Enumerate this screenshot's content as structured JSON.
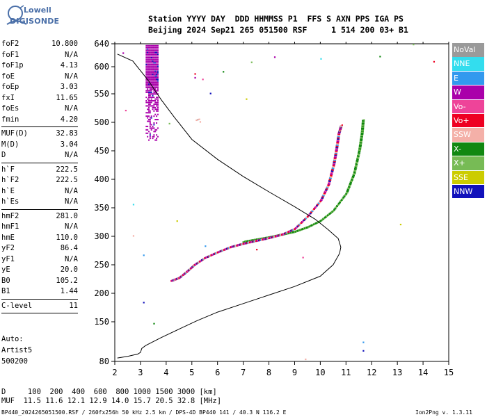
{
  "brand": {
    "line1": "Lowell",
    "line2": "DIGISONDE"
  },
  "header": {
    "line1": "Station YYYY DAY  DDD HHMMSS P1  FFS S AXN PPS IGA PS",
    "line2": "Beijing 2024 Sep21 265 051500 RSF     1 514 200 03+ B1"
  },
  "params": [
    {
      "label": "foF2",
      "value": "10.800"
    },
    {
      "label": "foF1",
      "value": "N/A"
    },
    {
      "label": "foF1p",
      "value": "4.13"
    },
    {
      "label": "foE",
      "value": "N/A"
    },
    {
      "label": "foEp",
      "value": "3.03"
    },
    {
      "label": "fxI",
      "value": "11.65"
    },
    {
      "label": "foEs",
      "value": "N/A"
    },
    {
      "label": "fmin",
      "value": "4.20"
    },
    {
      "sep": true
    },
    {
      "label": "MUF(D)",
      "value": "32.83"
    },
    {
      "label": "M(D)",
      "value": "3.04"
    },
    {
      "label": "D",
      "value": "N/A"
    },
    {
      "sep": true
    },
    {
      "label": "h`F",
      "value": "222.5"
    },
    {
      "label": "h`F2",
      "value": "222.5"
    },
    {
      "label": "h`E",
      "value": "N/A"
    },
    {
      "label": "h`Es",
      "value": "N/A"
    },
    {
      "sep": true
    },
    {
      "label": "hmF2",
      "value": "281.0"
    },
    {
      "label": "hmF1",
      "value": "N/A"
    },
    {
      "label": "hmE",
      "value": "110.0"
    },
    {
      "label": "yF2",
      "value": "86.4"
    },
    {
      "label": "yF1",
      "value": "N/A"
    },
    {
      "label": "yE",
      "value": "20.0"
    },
    {
      "label": "B0",
      "value": "105.2"
    },
    {
      "label": "B1",
      "value": "1.44"
    },
    {
      "sep": true
    },
    {
      "label": "C-level",
      "value": "11"
    },
    {
      "sep": true
    }
  ],
  "autoscaling": {
    "label": "Auto:",
    "program": "Artist5",
    "version": "500200"
  },
  "legend": [
    {
      "label": "NoVal",
      "color": "#9a9a9a"
    },
    {
      "label": "NNE",
      "color": "#33ddee"
    },
    {
      "label": "E",
      "color": "#3399ee"
    },
    {
      "label": "W",
      "color": "#aa00aa"
    },
    {
      "label": "Vo-",
      "color": "#ee4499"
    },
    {
      "label": "Vo+",
      "color": "#ee0022"
    },
    {
      "label": "SSW",
      "color": "#f4b0a8"
    },
    {
      "label": "X-",
      "color": "#118811"
    },
    {
      "label": "X+",
      "color": "#77bb55"
    },
    {
      "label": "SSE",
      "color": "#cccc00"
    },
    {
      "label": "NNW",
      "color": "#1111bb"
    }
  ],
  "muf_table": {
    "d_row": "D     100  200  400  600  800 1000 1500 3000 [km]",
    "muf_row": "MUF  11.5 11.6 12.1 12.9 14.0 15.7 20.5 32.8 [MHz]"
  },
  "footer": {
    "left": "BP440_2024265051500.RSF / 260fx256h 50 kHz 2.5 km / DPS-4D BP440 141 / 40.3 N 116.2 E",
    "right": "Ion2Png v. 1.3.11"
  },
  "chart_data": {
    "type": "scatter",
    "xlim": [
      2,
      15
    ],
    "ylim": [
      80,
      640
    ],
    "xticks": [
      2,
      3,
      4,
      5,
      6,
      7,
      8,
      9,
      10,
      11,
      12,
      13,
      14,
      15
    ],
    "yticks": [
      80,
      150,
      200,
      250,
      300,
      350,
      400,
      450,
      500,
      550,
      600,
      640
    ],
    "profile_curve": [
      [
        2.1,
        86
      ],
      [
        2.5,
        89
      ],
      [
        2.9,
        93
      ],
      [
        3.0,
        96
      ],
      [
        3.05,
        103
      ],
      [
        3.2,
        108
      ],
      [
        3.8,
        122
      ],
      [
        4.5,
        137
      ],
      [
        5.2,
        152
      ],
      [
        6.0,
        167
      ],
      [
        7.0,
        182
      ],
      [
        8.0,
        197
      ],
      [
        9.0,
        212
      ],
      [
        10.0,
        230
      ],
      [
        10.5,
        250
      ],
      [
        10.75,
        270
      ],
      [
        10.8,
        281
      ],
      [
        10.7,
        296
      ],
      [
        10.3,
        312
      ],
      [
        9.8,
        330
      ],
      [
        9.0,
        352
      ],
      [
        8.0,
        378
      ],
      [
        7.0,
        405
      ],
      [
        6.0,
        435
      ],
      [
        5.0,
        470
      ],
      [
        4.3,
        510
      ],
      [
        3.8,
        540
      ],
      [
        3.3,
        575
      ],
      [
        2.7,
        610
      ],
      [
        2.1,
        622
      ]
    ],
    "o_trace": [
      [
        4.2,
        222
      ],
      [
        4.5,
        227
      ],
      [
        4.8,
        238
      ],
      [
        5.1,
        250
      ],
      [
        5.5,
        262
      ],
      [
        6.0,
        272
      ],
      [
        6.5,
        281
      ],
      [
        7.0,
        287
      ],
      [
        7.5,
        292
      ],
      [
        8.0,
        297
      ],
      [
        8.5,
        303
      ],
      [
        9.0,
        313
      ],
      [
        9.5,
        335
      ],
      [
        10.0,
        362
      ],
      [
        10.3,
        390
      ],
      [
        10.5,
        425
      ],
      [
        10.6,
        450
      ],
      [
        10.7,
        480
      ],
      [
        10.8,
        495
      ]
    ],
    "x_trace": [
      [
        7.0,
        290
      ],
      [
        7.5,
        294
      ],
      [
        8.0,
        298
      ],
      [
        8.5,
        303
      ],
      [
        9.0,
        308
      ],
      [
        9.5,
        316
      ],
      [
        10.0,
        327
      ],
      [
        10.5,
        345
      ],
      [
        11.0,
        375
      ],
      [
        11.3,
        410
      ],
      [
        11.5,
        450
      ],
      [
        11.6,
        480
      ],
      [
        11.65,
        505
      ]
    ],
    "w_column": {
      "x": [
        3.2,
        3.65
      ],
      "y": [
        470,
        640
      ]
    },
    "es_traces": [
      {
        "x": [
          5.15,
          5.3
        ],
        "y": 505
      }
    ],
    "scattered_echoes": [
      [
        2.3,
        625
      ],
      [
        2.4,
        522
      ],
      [
        2.7,
        302
      ],
      [
        2.7,
        357
      ],
      [
        3.1,
        268
      ],
      [
        3.1,
        185
      ],
      [
        3.5,
        148
      ],
      [
        4.1,
        499
      ],
      [
        4.4,
        328
      ],
      [
        5.1,
        588
      ],
      [
        5.1,
        581
      ],
      [
        5.4,
        578
      ],
      [
        5.3,
        502
      ],
      [
        5.2,
        506
      ],
      [
        5.5,
        284
      ],
      [
        5.7,
        552
      ],
      [
        6.2,
        592
      ],
      [
        7.3,
        609
      ],
      [
        7.1,
        542
      ],
      [
        7.5,
        278
      ],
      [
        8.2,
        618
      ],
      [
        9.3,
        264
      ],
      [
        9.4,
        85
      ],
      [
        10.0,
        615
      ],
      [
        11.65,
        115
      ],
      [
        11.65,
        100
      ],
      [
        12.3,
        619
      ],
      [
        13.6,
        640
      ],
      [
        13.1,
        322
      ],
      [
        14.4,
        610
      ]
    ]
  }
}
